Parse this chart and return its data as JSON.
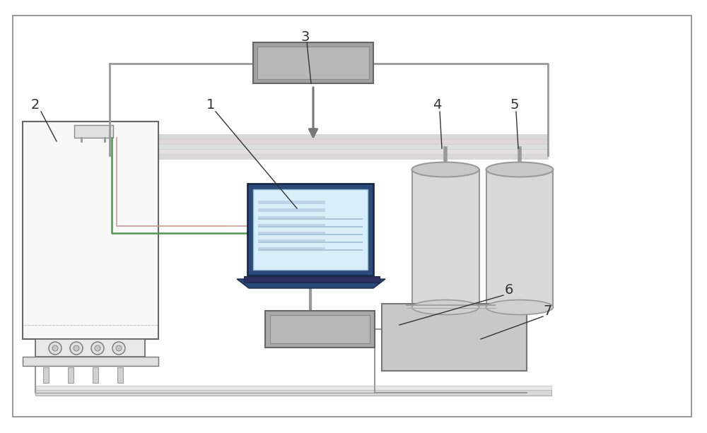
{
  "bg_color": "#ffffff",
  "border_color": "#555555",
  "light_gray": "#c8c8c8",
  "mid_gray": "#999999",
  "dark_gray": "#666666",
  "very_light_gray": "#e0e0e0",
  "blue_dark": "#2b4a7a",
  "blue_light": "#d8eef8",
  "green_line": "#4a9a4a",
  "line_color": "#888888",
  "label_color": "#333333",
  "figsize": [
    10.0,
    6.13
  ],
  "dpi": 100
}
